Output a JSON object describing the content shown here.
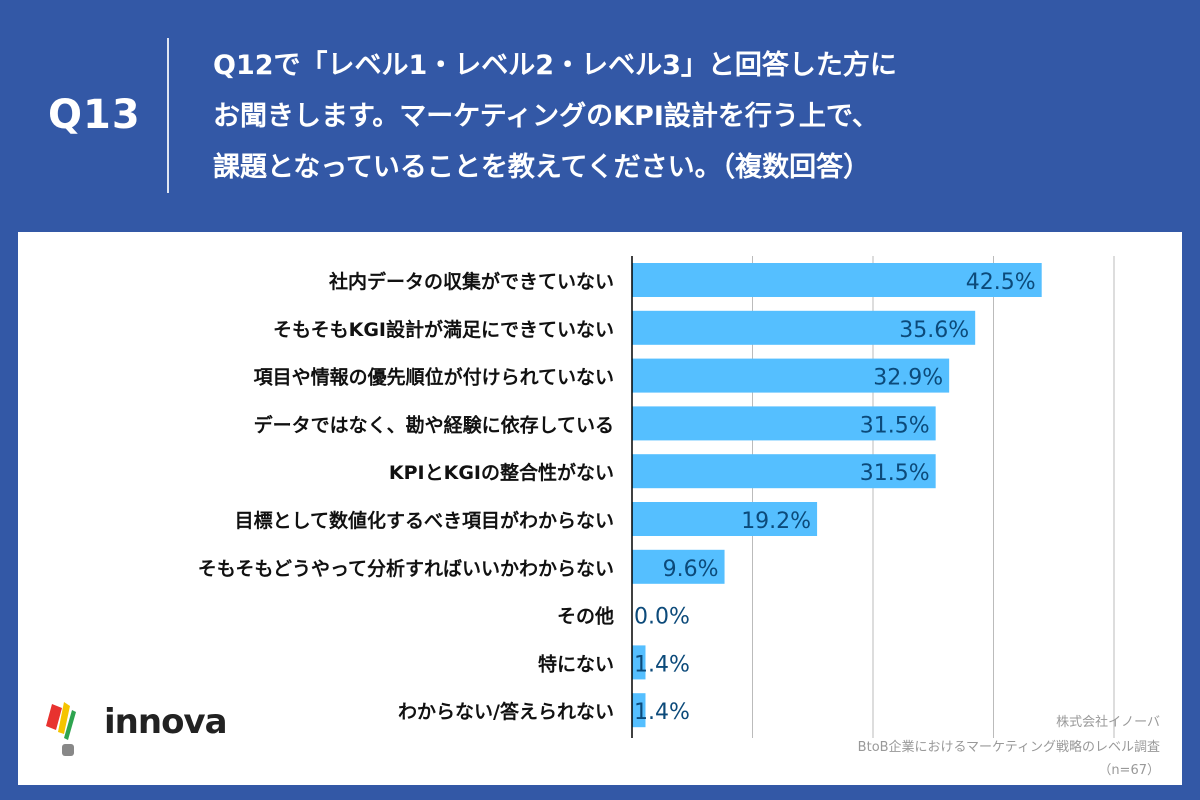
{
  "header": {
    "qnum": "Q13",
    "lines": [
      "Q12で「レベル1・レベル2・レベル3」と回答した方に",
      "お聞きします。マーケティングのKPI設計を行う上で、",
      "課題となっていることを教えてください。（複数回答）"
    ]
  },
  "footer": {
    "company": "株式会社イノーバ",
    "survey": "BtoB企業におけるマーケティング戦略のレベル調査",
    "n": "（n=67）",
    "logo": "innova"
  },
  "colors": {
    "background": "#3358a6",
    "bar": "#55bfff",
    "label": "#0c4a7a"
  },
  "chart_data": {
    "type": "bar",
    "orientation": "horizontal",
    "categories": [
      "社内データの収集ができていない",
      "そもそもKGI設計が満足にできていない",
      "項目や情報の優先順位が付けられていない",
      "データではなく、勘や経験に依存している",
      "KPIとKGIの整合性がない",
      "目標として数値化するべき項目がわからない",
      "そもそもどうやって分析すればいいかわからない",
      "その他",
      "特にない",
      "わからない/答えられない"
    ],
    "values": [
      42.5,
      35.6,
      32.9,
      31.5,
      31.5,
      19.2,
      9.6,
      0.0,
      1.4,
      1.4
    ],
    "value_labels": [
      "42.5%",
      "35.6%",
      "32.9%",
      "31.5%",
      "31.5%",
      "19.2%",
      "9.6%",
      "0.0%",
      "1.4%",
      "1.4%"
    ],
    "xlim": [
      0,
      50
    ],
    "gridlines": [
      12.5,
      25,
      37.5,
      50
    ],
    "grid": true
  }
}
